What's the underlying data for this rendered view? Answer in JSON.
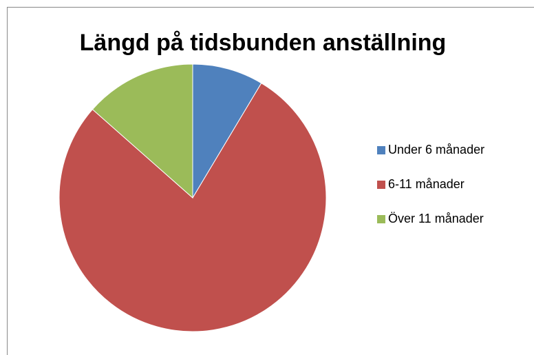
{
  "chart_data": {
    "type": "pie",
    "title": "Längd på tidsbunden anställning",
    "categories": [
      "Under 6 månader",
      "6-11 månader",
      "Över 11 månader"
    ],
    "values": [
      8.6,
      77.9,
      13.5
    ],
    "colors": [
      "#4f81bd",
      "#c0504d",
      "#9bbb59"
    ],
    "legend": "right"
  }
}
